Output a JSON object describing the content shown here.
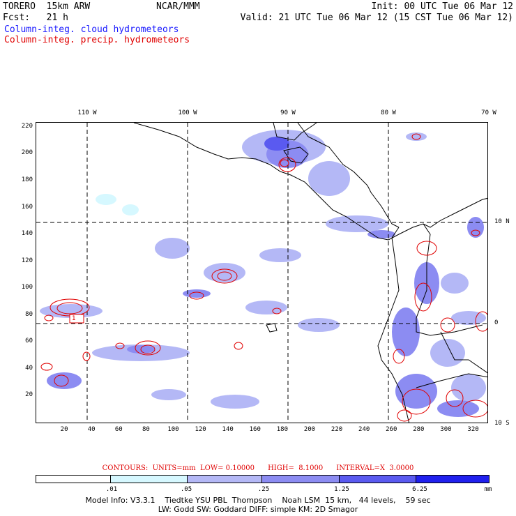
{
  "header": {
    "model": "TORERO  15km ARW",
    "org": "NCAR/MMM",
    "init": "Init: 00 UTC Tue 06 Mar 12",
    "fcst": "Fcst:   21 h",
    "valid": "Valid: 21 UTC Tue 06 Mar 12 (15 CST Tue 06 Mar 12)",
    "field1": "Column-integ. cloud hydrometeors",
    "field2": "Column-integ. precip. hydrometeors"
  },
  "colors": {
    "field1": "#1a1aff",
    "field2": "#e00000",
    "land_outline": "#000000",
    "contour": "#e00000"
  },
  "map": {
    "lon_labels": [
      "110 W",
      "100 W",
      "90 W",
      "80 W",
      "70 W"
    ],
    "lat_labels": [
      "10 N",
      "0",
      "10 S"
    ],
    "x_ticks": [
      "20",
      "40",
      "60",
      "80",
      "100",
      "120",
      "140",
      "160",
      "180",
      "200",
      "220",
      "240",
      "260",
      "280",
      "300",
      "320"
    ],
    "y_ticks": [
      "220",
      "200",
      "180",
      "160",
      "140",
      "120",
      "100",
      "80",
      "60",
      "40",
      "20"
    ],
    "box_label": "1"
  },
  "contour_info": "CONTOURS:  UNITS=mm  LOW= 0.10000      HIGH=  8.1000      INTERVAL=X  3.0000",
  "colorbar": {
    "labels": [
      ".01",
      ".05",
      ".25",
      "1.25",
      "6.25",
      "mm"
    ],
    "colors": [
      "#ffffff",
      "#d6f8ff",
      "#b4b8f6",
      "#8c8cf2",
      "#5a5af0",
      "#2020ee"
    ]
  },
  "footer": {
    "line1": "Model Info: V3.3.1    Tiedtke YSU PBL  Thompson    Noah LSM  15 km,   44 levels,    59 sec",
    "line2": "LW: Godd SW: Goddard DIFF: simple KM: 2D Smagor"
  }
}
